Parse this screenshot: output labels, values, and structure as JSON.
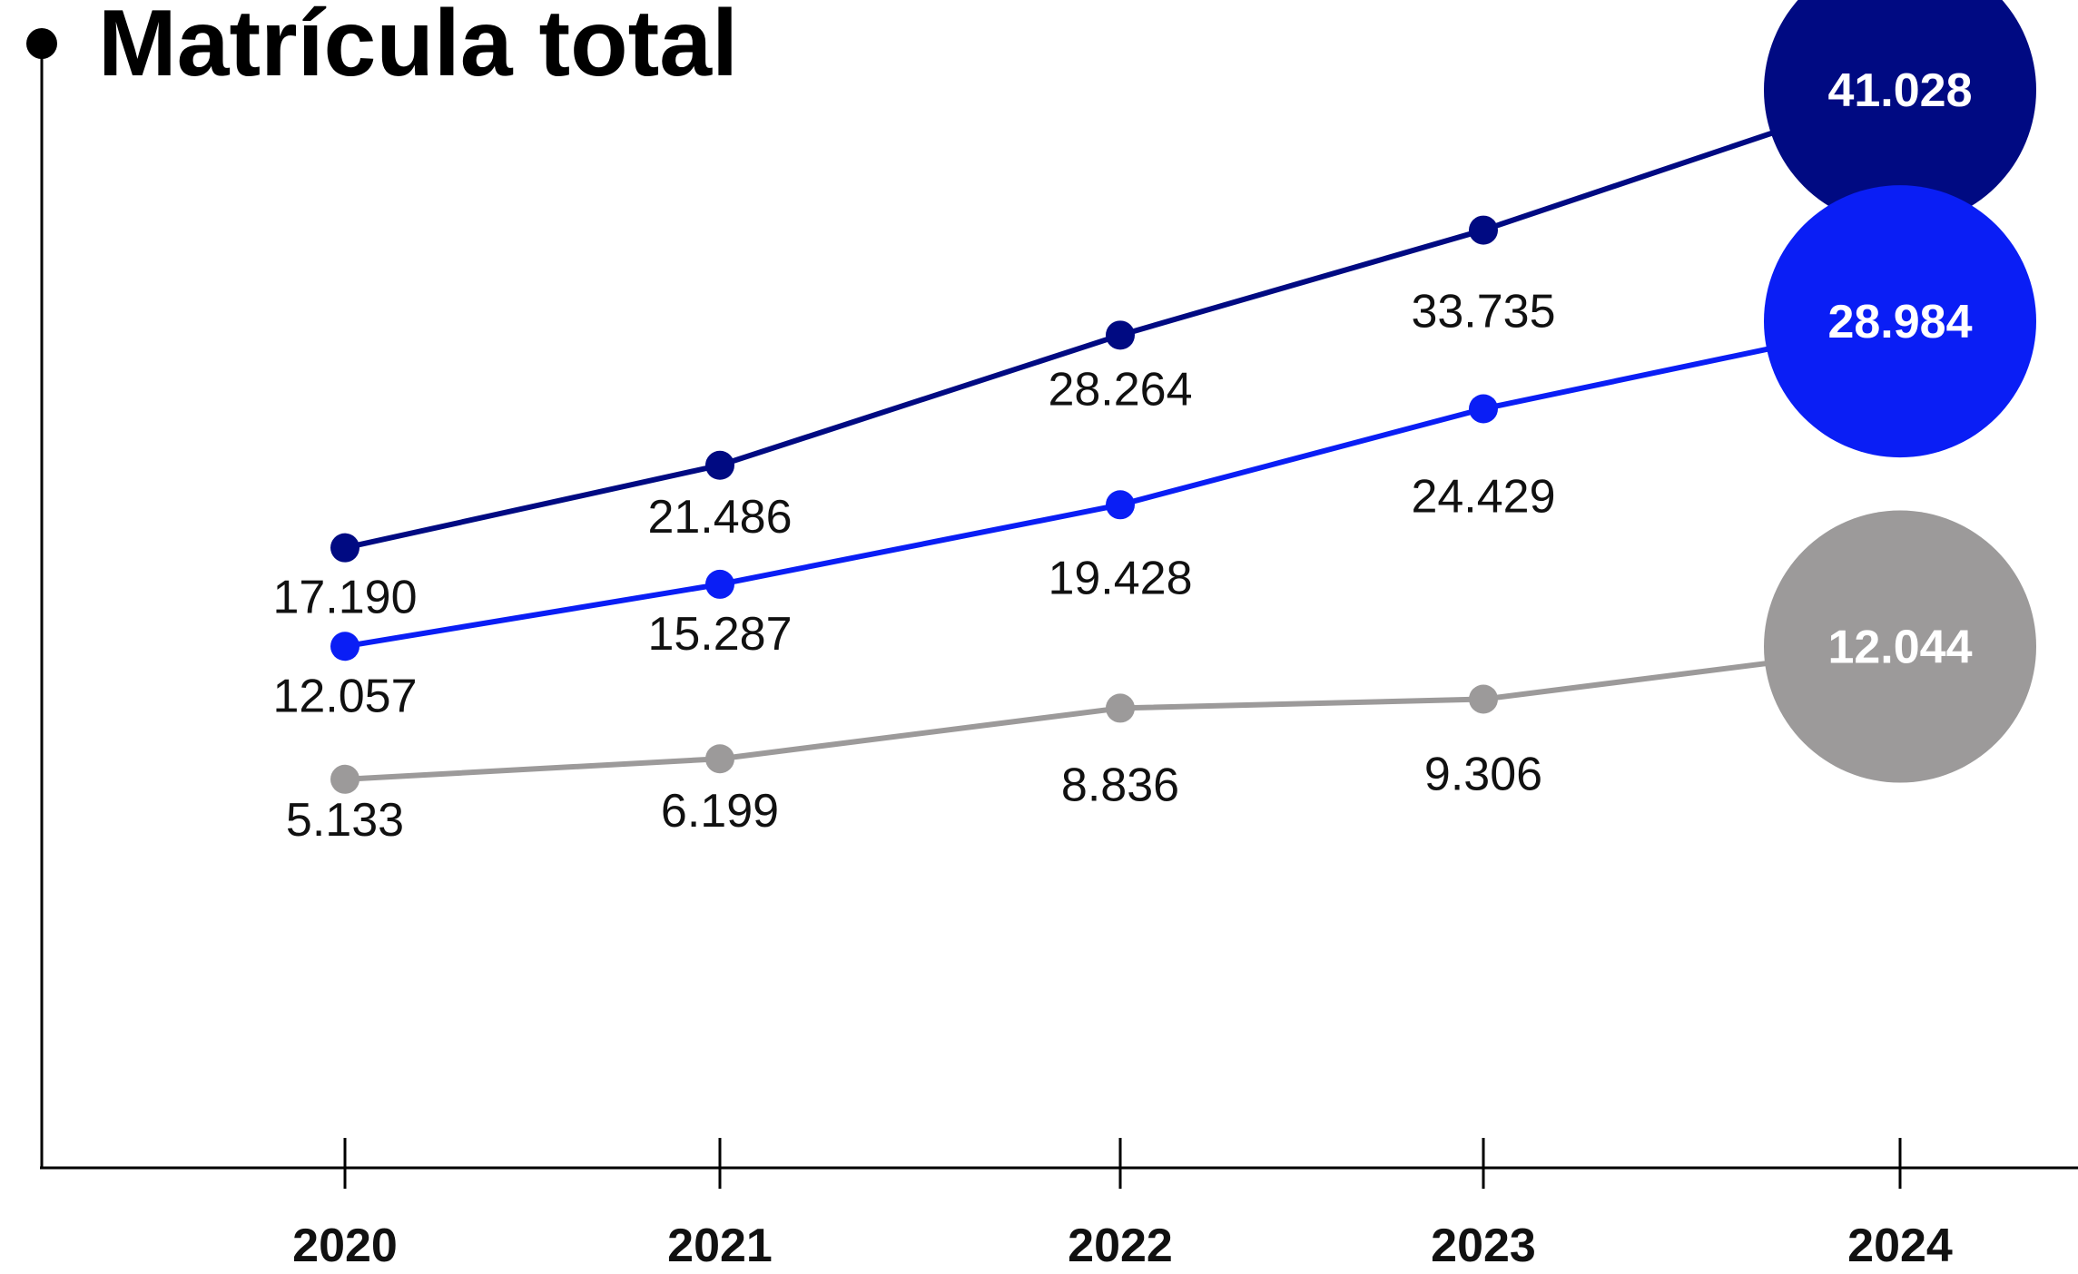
{
  "title": "Matrícula total",
  "chart_data": {
    "type": "line",
    "title": "Matrícula total",
    "categories": [
      "2020",
      "2021",
      "2022",
      "2023",
      "2024"
    ],
    "series": [
      {
        "color": "#000a82",
        "values": [
          17190,
          21486,
          28264,
          33735,
          41028
        ],
        "labels": [
          "17.190",
          "21.486",
          "28.264",
          "33.735",
          "41.028"
        ]
      },
      {
        "color": "#0a1ef5",
        "values": [
          12057,
          15287,
          19428,
          24429,
          28984
        ],
        "labels": [
          "12.057",
          "15.287",
          "19.428",
          "24.429",
          "28.984"
        ]
      },
      {
        "color": "#9c9a9a",
        "values": [
          5133,
          6199,
          8836,
          9306,
          12044
        ],
        "labels": [
          "5.133",
          "6.199",
          "8.836",
          "9.306",
          "12.044"
        ]
      }
    ],
    "grid": false,
    "legend": "none"
  }
}
